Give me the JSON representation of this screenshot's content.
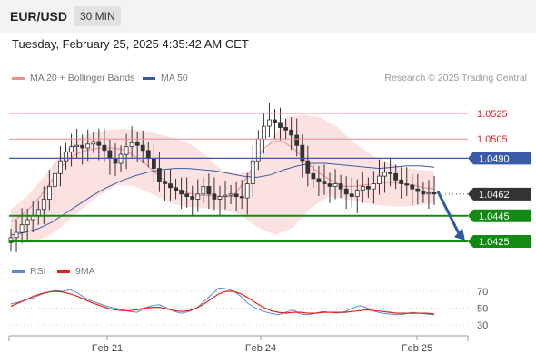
{
  "header": {
    "symbol": "EUR/USD",
    "timeframe": "30 MIN",
    "datetime": "Tuesday, February 25, 2025 4:35:42 AM CET"
  },
  "legend": {
    "ma20_label": "MA 20 + Bollinger Bands",
    "ma50_label": "MA 50",
    "credit": "Research © 2025 Trading Central"
  },
  "rsi_legend": {
    "rsi_label": "RSI",
    "ma9_label": "9MA"
  },
  "colors": {
    "resistance": "#f48a92",
    "resistance_text": "#e8202a",
    "ma50": "#3a5ba8",
    "support": "#138a13",
    "bollinger_fill": "#fcdcdc",
    "candle_up": "#ffffff",
    "candle_down": "#333333",
    "rsi": "#5d86d6",
    "rsi_ma": "#e2231a",
    "arrow": "#2e5aa3",
    "current": "#333333"
  },
  "chart_data": [
    {
      "type": "candlestick",
      "title": "EUR/USD",
      "timeframe": "30 MIN",
      "x_tick_labels": [
        "Feb 21",
        "Feb 24",
        "Feb 25"
      ],
      "current_price": "1.0462",
      "levels": [
        {
          "label": "1.0525",
          "value": 1.0525,
          "kind": "resistance"
        },
        {
          "label": "1.0505",
          "value": 1.0505,
          "kind": "resistance"
        },
        {
          "label": "1.0490",
          "value": 1.049,
          "kind": "pivot"
        },
        {
          "label": "1.0445",
          "value": 1.0445,
          "kind": "support"
        },
        {
          "label": "1.0425",
          "value": 1.0425,
          "kind": "support"
        }
      ],
      "forecast_arrow": {
        "from": 1.0464,
        "to": 1.0427,
        "direction": "down"
      },
      "ylim": [
        1.0415,
        1.056
      ],
      "close_series": [
        1.0428,
        1.0432,
        1.0438,
        1.0442,
        1.0445,
        1.045,
        1.0458,
        1.0468,
        1.0478,
        1.0488,
        1.0495,
        1.0499,
        1.05,
        1.0498,
        1.0501,
        1.0503,
        1.05,
        1.0496,
        1.049,
        1.0486,
        1.0493,
        1.0499,
        1.0502,
        1.05,
        1.0496,
        1.049,
        1.0482,
        1.0472,
        1.047,
        1.0467,
        1.0465,
        1.0462,
        1.046,
        1.0458,
        1.0462,
        1.0468,
        1.0462,
        1.0458,
        1.046,
        1.0461,
        1.0462,
        1.046,
        1.0459,
        1.047,
        1.0488,
        1.0505,
        1.0515,
        1.052,
        1.0518,
        1.0514,
        1.0512,
        1.0508,
        1.05,
        1.0488,
        1.0478,
        1.0474,
        1.0472,
        1.047,
        1.0468,
        1.047,
        1.0466,
        1.0462,
        1.046,
        1.0465,
        1.0468,
        1.0466,
        1.047,
        1.0476,
        1.0479,
        1.0478,
        1.0473,
        1.047,
        1.0469,
        1.0466,
        1.0464,
        1.0462,
        1.0463,
        1.0462
      ],
      "ma20": [
        1.044,
        1.0445,
        1.0452,
        1.0461,
        1.0472,
        1.0483,
        1.0491,
        1.0495,
        1.0497,
        1.0498,
        1.0498,
        1.0497,
        1.0493,
        1.0488,
        1.0481,
        1.0474,
        1.0468,
        1.0464,
        1.0462,
        1.0461,
        1.0461,
        1.046,
        1.046,
        1.047,
        1.0483,
        1.0497,
        1.0503,
        1.0503,
        1.0498,
        1.049,
        1.0482,
        1.0476,
        1.0472,
        1.0468,
        1.0468,
        1.0469,
        1.047,
        1.0471,
        1.0471,
        1.047,
        1.0469,
        1.0467,
        1.0466
      ],
      "ma50": [
        1.043,
        1.0432,
        1.0435,
        1.044,
        1.0447,
        1.0454,
        1.0461,
        1.0467,
        1.0472,
        1.0476,
        1.0479,
        1.0481,
        1.0482,
        1.0482,
        1.0481,
        1.048,
        1.0478,
        1.0476,
        1.0475,
        1.0477,
        1.0481,
        1.0484,
        1.0486,
        1.0486,
        1.0485,
        1.0484,
        1.0483,
        1.0482,
        1.0483,
        1.0484,
        1.0484,
        1.0483
      ],
      "bb_upper": [
        1.045,
        1.046,
        1.0475,
        1.0492,
        1.0505,
        1.051,
        1.0512,
        1.0513,
        1.0512,
        1.0509,
        1.0506,
        1.0501,
        1.0492,
        1.048,
        1.0478,
        1.048,
        1.0505,
        1.0522,
        1.0524,
        1.0522,
        1.0515,
        1.0503,
        1.0494,
        1.0487,
        1.0483,
        1.0481,
        1.048
      ],
      "bb_lower": [
        1.0425,
        1.0424,
        1.0428,
        1.0438,
        1.045,
        1.0461,
        1.0469,
        1.0468,
        1.0462,
        1.0455,
        1.0452,
        1.0451,
        1.045,
        1.0446,
        1.0436,
        1.043,
        1.0436,
        1.0451,
        1.046,
        1.0458,
        1.0455,
        1.0453,
        1.0452,
        1.0453,
        1.0455
      ]
    },
    {
      "type": "line",
      "title": "RSI",
      "ylim": [
        20,
        80
      ],
      "y_ticks": [
        "70",
        "50",
        "30"
      ],
      "x_tick_labels": [
        "Feb 21",
        "Feb 24",
        "Feb 25"
      ],
      "series": [
        {
          "name": "RSI",
          "values": [
            55,
            57,
            60,
            62,
            66,
            69,
            71,
            70,
            72,
            68,
            62,
            58,
            55,
            52,
            50,
            48,
            46,
            45,
            50,
            53,
            54,
            50,
            46,
            44,
            46,
            50,
            58,
            66,
            74,
            73,
            70,
            64,
            55,
            50,
            46,
            44,
            42,
            45,
            48,
            43,
            42,
            44,
            46,
            45,
            44,
            46,
            50,
            53,
            50,
            46,
            44,
            43,
            42,
            43,
            45,
            44,
            43,
            42
          ]
        },
        {
          "name": "9MA",
          "values": [
            52,
            56,
            60,
            64,
            67,
            69,
            70,
            69,
            67,
            64,
            60,
            56,
            53,
            50,
            48,
            47,
            47,
            48,
            50,
            51,
            51,
            49,
            47,
            46,
            47,
            50,
            55,
            61,
            67,
            70,
            70,
            67,
            62,
            56,
            51,
            47,
            45,
            44,
            45,
            45,
            44,
            44,
            45,
            45,
            45,
            45,
            46,
            47,
            48,
            47,
            46,
            45,
            44,
            44,
            44,
            44,
            44,
            43
          ]
        }
      ]
    }
  ]
}
